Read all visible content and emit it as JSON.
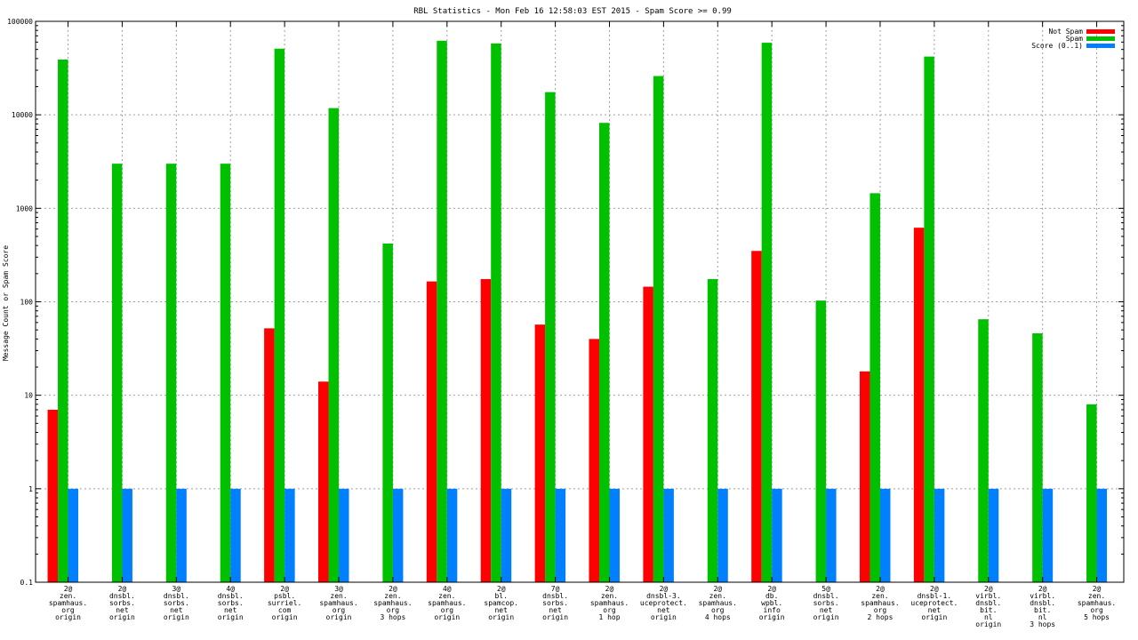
{
  "chart_data": {
    "type": "bar",
    "title": "RBL Statistics - Mon Feb 16 12:58:03 EST 2015 - Spam Score >= 0.99",
    "ylabel": "Message Count or Spam Score",
    "xlabel": "",
    "yscale": "log",
    "ylim": [
      0.1,
      100000
    ],
    "yticks": [
      "0.1",
      "1",
      "10",
      "100",
      "1000",
      "10000",
      "100000"
    ],
    "grid": true,
    "legend_position": "top-right",
    "categories": [
      [
        "2@",
        "zen.",
        "spamhaus.",
        "org",
        "origin"
      ],
      [
        "2@",
        "dnsbl.",
        "sorbs.",
        "net",
        "origin"
      ],
      [
        "3@",
        "dnsbl.",
        "sorbs.",
        "net",
        "origin"
      ],
      [
        "4@",
        "dnsbl.",
        "sorbs.",
        "net",
        "origin"
      ],
      [
        "2@",
        "psbl.",
        "surriel.",
        "com",
        "origin"
      ],
      [
        "3@",
        "zen.",
        "spamhaus.",
        "org",
        "origin"
      ],
      [
        "2@",
        "zen.",
        "spamhaus.",
        "org",
        "3 hops"
      ],
      [
        "4@",
        "zen.",
        "spamhaus.",
        "org",
        "origin"
      ],
      [
        "2@",
        "bl.",
        "spamcop.",
        "net",
        "origin"
      ],
      [
        "7@",
        "dnsbl.",
        "sorbs.",
        "net",
        "origin"
      ],
      [
        "2@",
        "zen.",
        "spamhaus.",
        "org",
        "1 hop"
      ],
      [
        "2@",
        "dnsbl-3.",
        "uceprotect.",
        "net",
        "origin"
      ],
      [
        "2@",
        "zen.",
        "spamhaus.",
        "org",
        "4 hops"
      ],
      [
        "2@",
        "db.",
        "wpbl.",
        "info",
        "origin"
      ],
      [
        "5@",
        "dnsbl.",
        "sorbs.",
        "net",
        "origin"
      ],
      [
        "2@",
        "zen.",
        "spamhaus.",
        "org",
        "2 hops"
      ],
      [
        "2@",
        "dnsbl-1.",
        "uceprotect.",
        "net",
        "origin"
      ],
      [
        "2@",
        "virbl.",
        "dnsbl.",
        "bit.",
        "nl",
        "origin"
      ],
      [
        "2@",
        "virbl.",
        "dnsbl.",
        "bit.",
        "nl",
        "3 hops"
      ],
      [
        "2@",
        "zen.",
        "spamhaus.",
        "org",
        "5 hops"
      ]
    ],
    "series": [
      {
        "name": "Not Spam",
        "color": "#ff0000",
        "values": [
          7,
          0,
          0,
          0,
          52,
          14,
          0,
          165,
          175,
          57,
          40,
          145,
          0,
          350,
          0,
          18,
          620,
          0,
          0,
          0
        ]
      },
      {
        "name": "Spam",
        "color": "#00c000",
        "values": [
          39000,
          3000,
          3000,
          3000,
          51000,
          11800,
          420,
          62000,
          58000,
          17500,
          8200,
          26000,
          175,
          59000,
          103,
          1450,
          42000,
          65,
          46,
          8
        ]
      },
      {
        "name": "Score (0..1)",
        "color": "#0080ff",
        "values": [
          1,
          1,
          1,
          1,
          1,
          1,
          1,
          1,
          1,
          1,
          1,
          1,
          1,
          1,
          1,
          1,
          1,
          1,
          1,
          1
        ]
      }
    ]
  }
}
